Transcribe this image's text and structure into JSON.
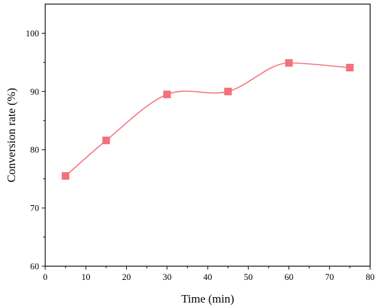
{
  "chart_data": {
    "type": "line",
    "title": "",
    "xlabel": "Time (min)",
    "ylabel": "Conversion rate (%)",
    "xlim": [
      0,
      80
    ],
    "ylim": [
      60,
      105
    ],
    "xticks": [
      0,
      10,
      20,
      30,
      40,
      50,
      60,
      70,
      80
    ],
    "yticks": [
      60,
      70,
      80,
      90,
      100
    ],
    "grid": false,
    "legend": "none",
    "series": [
      {
        "x": [
          5,
          15,
          30,
          45,
          60,
          75
        ],
        "y": [
          75.5,
          81.6,
          89.5,
          90.0,
          94.9,
          94.1
        ],
        "marker": "square",
        "line": "smooth",
        "color": "#f4707a"
      }
    ]
  }
}
